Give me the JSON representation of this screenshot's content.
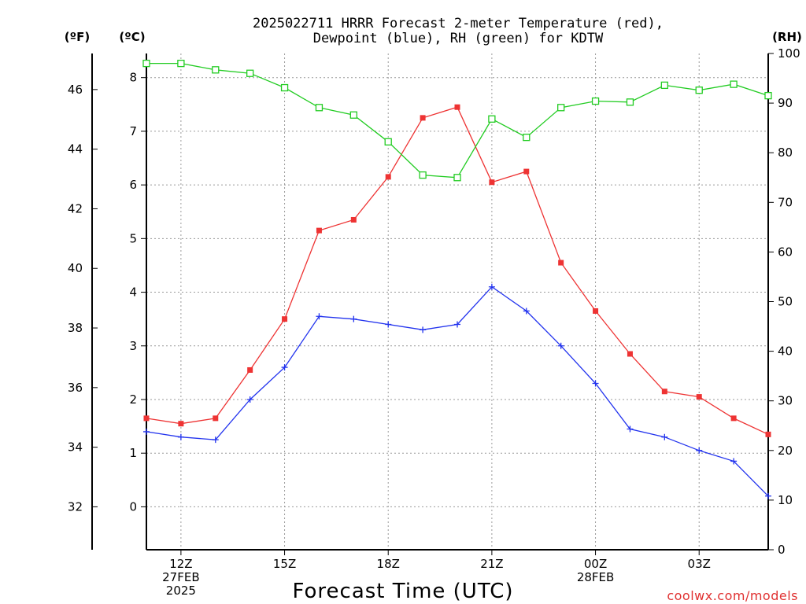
{
  "chart_data": {
    "type": "line",
    "title_line1": "2025022711 HRRR Forecast 2-meter Temperature (red),",
    "title_line2": "Dewpoint (blue), RH (green) for KDTW",
    "left_outer_unit": "(ºF)",
    "left_inner_unit": "(ºC)",
    "right_unit": "(RH)",
    "xlabel": "Forecast Time (UTC)",
    "watermark": "coolwx.com/models",
    "x_hours": [
      11,
      12,
      13,
      14,
      15,
      16,
      17,
      18,
      19,
      20,
      21,
      22,
      23,
      24,
      25,
      26,
      27,
      28,
      29
    ],
    "xlim": [
      11,
      29
    ],
    "x_ticks": [
      {
        "hour": 12,
        "lines": [
          "12Z",
          "27FEB",
          "2025"
        ]
      },
      {
        "hour": 15,
        "lines": [
          "15Z"
        ]
      },
      {
        "hour": 18,
        "lines": [
          "18Z"
        ]
      },
      {
        "hour": 21,
        "lines": [
          "21Z"
        ]
      },
      {
        "hour": 24,
        "lines": [
          "00Z",
          "28FEB"
        ]
      },
      {
        "hour": 27,
        "lines": [
          "03Z"
        ]
      }
    ],
    "celsius_axis": {
      "ylim": [
        -0.8,
        8.45
      ],
      "ticks": [
        0,
        1,
        2,
        3,
        4,
        5,
        6,
        7,
        8
      ]
    },
    "fahrenheit_axis": {
      "ylim": [
        30.56,
        47.21
      ],
      "ticks": [
        32,
        34,
        36,
        38,
        40,
        42,
        44,
        46
      ]
    },
    "rh_axis": {
      "ylim": [
        0,
        100
      ],
      "ticks": [
        0,
        10,
        20,
        30,
        40,
        50,
        60,
        70,
        80,
        90,
        100
      ]
    },
    "grid": true,
    "series": [
      {
        "key": "temperature",
        "color": "#ee3333",
        "marker": "filled-square",
        "axis": "celsius",
        "values": [
          1.65,
          1.55,
          1.65,
          2.55,
          3.5,
          5.15,
          5.35,
          6.15,
          7.25,
          7.45,
          6.05,
          6.25,
          4.55,
          3.65,
          2.85,
          2.15,
          2.05,
          1.65,
          1.35
        ]
      },
      {
        "key": "dewpoint",
        "color": "#2233ee",
        "marker": "plus",
        "axis": "celsius",
        "values": [
          1.4,
          1.3,
          1.25,
          2.0,
          2.6,
          3.55,
          3.5,
          3.4,
          3.3,
          3.4,
          4.1,
          3.65,
          3.0,
          2.3,
          1.45,
          1.3,
          1.05,
          0.85,
          0.2
        ]
      },
      {
        "key": "rh",
        "color": "#22cc22",
        "marker": "open-square",
        "axis": "rh",
        "values": [
          98,
          98,
          96.7,
          96,
          93.1,
          89.1,
          87.6,
          82.2,
          75.5,
          75,
          86.8,
          83.1,
          89.1,
          90.4,
          90.2,
          93.6,
          92.6,
          93.8,
          91.5
        ]
      }
    ]
  }
}
